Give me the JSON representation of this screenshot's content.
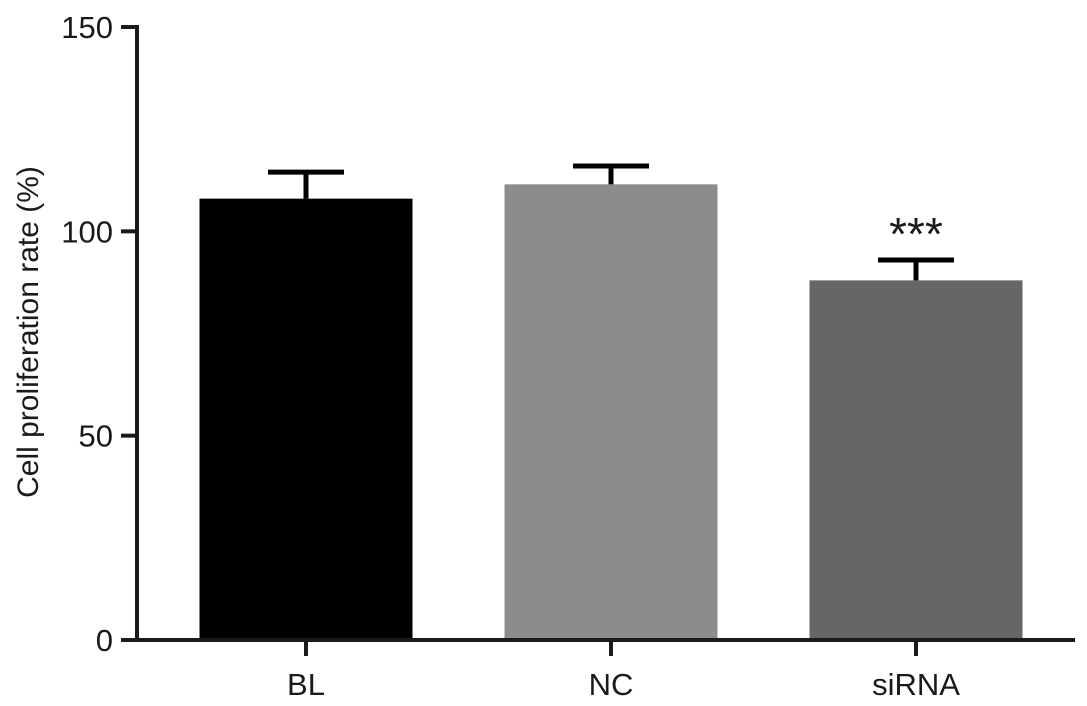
{
  "chart_data": {
    "type": "bar",
    "title": "",
    "xlabel": "",
    "ylabel": "Cell proliferation rate (%)",
    "ylim": [
      0,
      150
    ],
    "yticks": [
      0,
      50,
      100,
      150
    ],
    "categories": [
      "BL",
      "NC",
      "siRNA"
    ],
    "values": [
      108,
      111.5,
      88
    ],
    "errors": [
      6.5,
      4.5,
      5
    ],
    "colors": [
      "#000000",
      "#8c8c8c",
      "#666666"
    ],
    "annotations": [
      "",
      "",
      "***"
    ],
    "grid": false,
    "legend": "none"
  }
}
